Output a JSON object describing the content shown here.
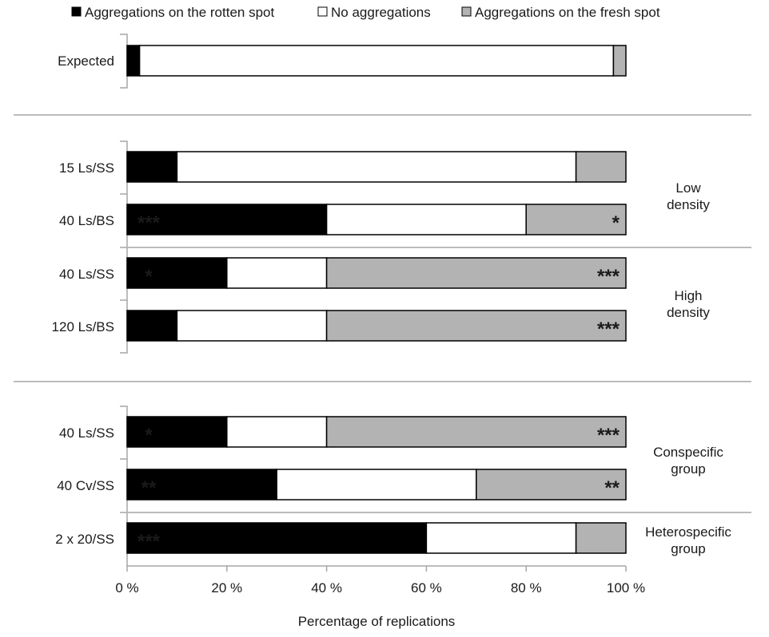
{
  "chart_data": {
    "type": "bar",
    "stacked": true,
    "orientation": "horizontal",
    "title": "",
    "xlabel": "Percentage of replications",
    "ylabel": "",
    "xlim": [
      0,
      100
    ],
    "x_tick_labels": [
      "0 %",
      "20 %",
      "40 %",
      "60 %",
      "80 %",
      "100 %"
    ],
    "legend_position": "top",
    "series": [
      {
        "name": "Aggregations on the rotten spot",
        "color": "#000000"
      },
      {
        "name": "No aggregations",
        "color": "#ffffff"
      },
      {
        "name": "Aggregations on the fresh spot",
        "color": "#b3b3b3"
      }
    ],
    "rows": [
      {
        "label": "Expected",
        "values": [
          2.5,
          95,
          2.5
        ],
        "annotations": [
          "",
          "",
          ""
        ]
      },
      {
        "label": "15 Ls/SS",
        "values": [
          10,
          80,
          10
        ],
        "annotations": [
          "",
          "",
          ""
        ]
      },
      {
        "label": "40 Ls/BS",
        "values": [
          40,
          40,
          20
        ],
        "annotations": [
          "***",
          "",
          "*"
        ]
      },
      {
        "label": "40 Ls/SS",
        "values": [
          20,
          20,
          60
        ],
        "annotations": [
          "*",
          "",
          "***"
        ]
      },
      {
        "label": "120 Ls/BS",
        "values": [
          10,
          30,
          60
        ],
        "annotations": [
          "",
          "",
          "***"
        ]
      },
      {
        "label": "40 Ls/SS",
        "values": [
          20,
          20,
          60
        ],
        "annotations": [
          "*",
          "",
          "***"
        ]
      },
      {
        "label": "40 Cv/SS",
        "values": [
          30,
          40,
          30
        ],
        "annotations": [
          "**",
          "",
          "**"
        ]
      },
      {
        "label": "2 x 20/SS",
        "values": [
          60,
          30,
          10
        ],
        "annotations": [
          "***",
          "",
          ""
        ]
      }
    ],
    "group_labels": [
      {
        "line1": "Low",
        "line2": "density"
      },
      {
        "line1": "High",
        "line2": "density"
      },
      {
        "line1": "Conspecific",
        "line2": "group"
      },
      {
        "line1": "Heterospecific",
        "line2": "group"
      }
    ]
  }
}
